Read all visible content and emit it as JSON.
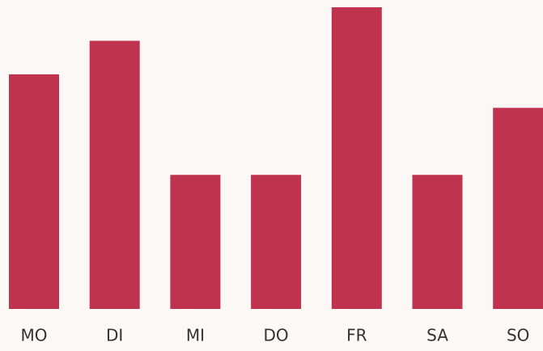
{
  "chart_data": {
    "type": "bar",
    "categories": [
      "MO",
      "DI",
      "MI",
      "DO",
      "FR",
      "SA",
      "SO"
    ],
    "values": [
      7,
      8,
      4,
      4,
      9,
      4,
      6
    ],
    "color": "#c0334f",
    "ylim": [
      0,
      9
    ]
  }
}
